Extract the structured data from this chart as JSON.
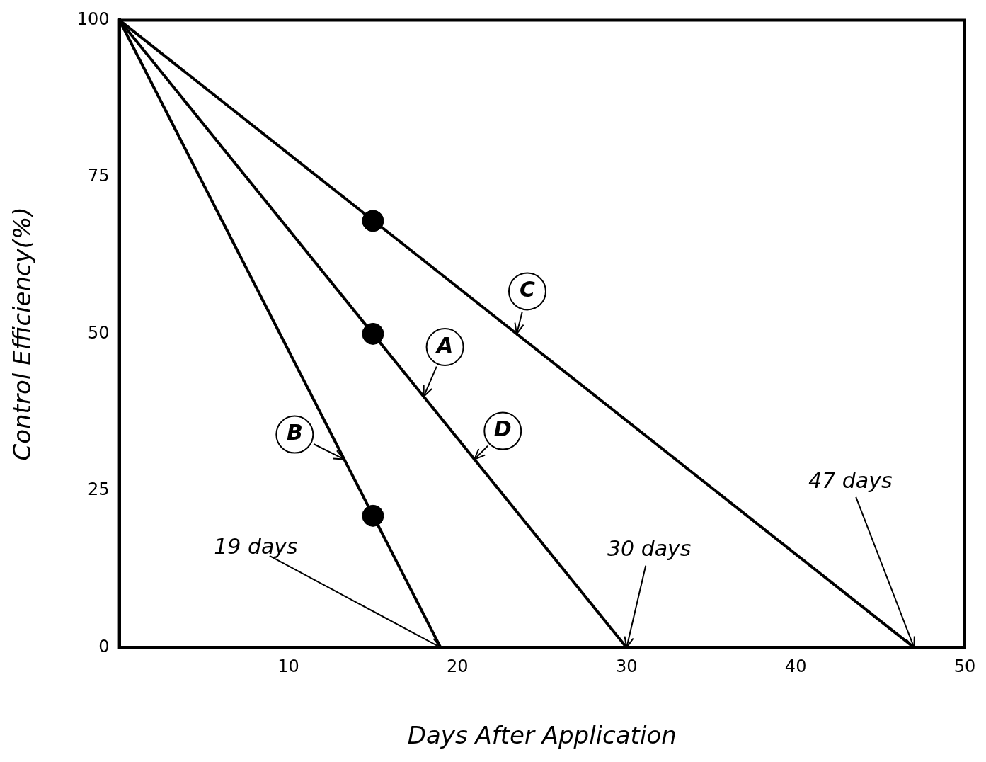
{
  "chart_data": {
    "type": "line",
    "xlabel": "Days After Application",
    "ylabel": "Control Efficiency(%)",
    "xlim": [
      0,
      50
    ],
    "ylim": [
      0,
      100
    ],
    "xticks": [
      10,
      20,
      30,
      40,
      50
    ],
    "yticks": [
      0,
      25,
      50,
      75,
      100
    ],
    "grid": false,
    "legend": false,
    "marker": "none",
    "line_style": "solid",
    "series": [
      {
        "color": "#000000",
        "x": [
          0,
          19
        ],
        "values": [
          100,
          0
        ]
      },
      {
        "color": "#000000",
        "x": [
          0,
          30
        ],
        "values": [
          100,
          0
        ]
      },
      {
        "color": "#000000",
        "x": [
          0,
          47
        ],
        "values": [
          100,
          0
        ]
      },
      {
        "type": "scatter",
        "marker": "circle",
        "color": "#000000",
        "x": [
          15,
          15,
          15
        ],
        "values": [
          21,
          50,
          68
        ]
      }
    ],
    "annotations": [
      {
        "text": "A",
        "x": 18,
        "y": 40
      },
      {
        "text": "D",
        "x": 21,
        "y": 30
      },
      {
        "text": "C",
        "x": 23.5,
        "y": 50
      },
      {
        "text": "B",
        "x": 13.3,
        "y": 30
      },
      {
        "text": "19 days",
        "x": 19,
        "y": 0
      },
      {
        "text": "30 days",
        "x": 30,
        "y": 0
      },
      {
        "text": "47 days",
        "x": 47,
        "y": 0
      }
    ]
  }
}
